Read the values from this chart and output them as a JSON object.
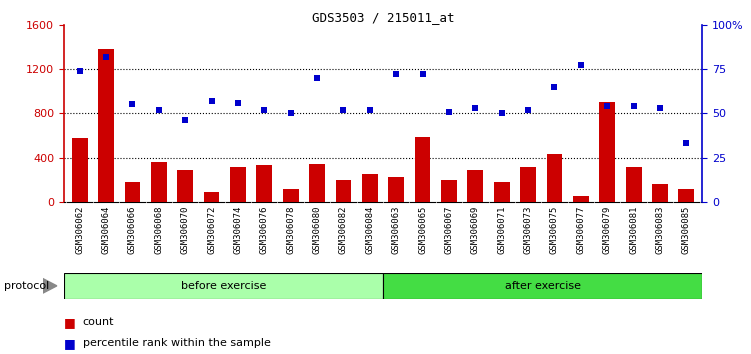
{
  "title": "GDS3503 / 215011_at",
  "categories": [
    "GSM306062",
    "GSM306064",
    "GSM306066",
    "GSM306068",
    "GSM306070",
    "GSM306072",
    "GSM306074",
    "GSM306076",
    "GSM306078",
    "GSM306080",
    "GSM306082",
    "GSM306084",
    "GSM306063",
    "GSM306065",
    "GSM306067",
    "GSM306069",
    "GSM306071",
    "GSM306073",
    "GSM306075",
    "GSM306077",
    "GSM306079",
    "GSM306081",
    "GSM306083",
    "GSM306085"
  ],
  "count_values": [
    580,
    1380,
    180,
    360,
    290,
    90,
    310,
    330,
    120,
    340,
    200,
    250,
    220,
    590,
    200,
    290,
    180,
    310,
    430,
    50,
    900,
    310,
    160,
    120
  ],
  "percentile_values": [
    74,
    82,
    55,
    52,
    46,
    57,
    56,
    52,
    50,
    70,
    52,
    52,
    72,
    72,
    51,
    53,
    50,
    52,
    65,
    77,
    54,
    54,
    53,
    33
  ],
  "bar_color": "#cc0000",
  "dot_color": "#0000cc",
  "before_count": 12,
  "after_count": 12,
  "before_color": "#aaffaa",
  "after_color": "#44dd44",
  "protocol_label": "protocol",
  "before_label": "before exercise",
  "after_label": "after exercise",
  "legend_count_label": "count",
  "legend_pct_label": "percentile rank within the sample",
  "ylim_left": [
    0,
    1600
  ],
  "ylim_right": [
    0,
    100
  ],
  "yticks_left": [
    0,
    400,
    800,
    1200,
    1600
  ],
  "yticks_right": [
    0,
    25,
    50,
    75,
    100
  ],
  "plot_bg": "#ffffff",
  "xticklabel_bg": "#cccccc",
  "grid_color": "#000000"
}
